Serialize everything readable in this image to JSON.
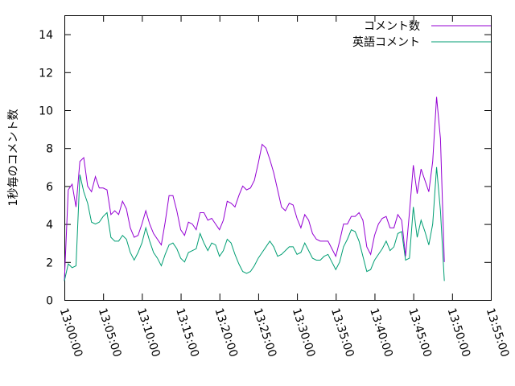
{
  "chart_data": {
    "type": "line",
    "ylabel": "1秒毎のコメント数",
    "xlabel": "",
    "ylim": [
      0,
      15
    ],
    "yticks": [
      0,
      2,
      4,
      6,
      8,
      10,
      12,
      14
    ],
    "xlim": [
      "13:00:00",
      "13:55:00"
    ],
    "xticks": [
      "13:00:00",
      "13:05:00",
      "13:10:00",
      "13:15:00",
      "13:20:00",
      "13:25:00",
      "13:30:00",
      "13:35:00",
      "13:40:00",
      "13:45:00",
      "13:50:00",
      "13:55:00"
    ],
    "grid": false,
    "legend_position": "top-right",
    "sample_interval": "30s",
    "series": [
      {
        "name": "コメント数",
        "color": "#9400d3",
        "values": [
          1.0,
          5.8,
          6.1,
          4.9,
          7.3,
          7.5,
          6.0,
          5.7,
          6.5,
          5.9,
          5.9,
          5.8,
          4.5,
          4.7,
          4.5,
          5.2,
          4.8,
          3.8,
          3.3,
          3.4,
          4.0,
          4.7,
          4.0,
          3.5,
          3.2,
          2.9,
          4.1,
          5.5,
          5.5,
          4.7,
          3.7,
          3.4,
          4.1,
          4.0,
          3.7,
          4.6,
          4.6,
          4.2,
          4.3,
          4.0,
          3.7,
          4.2,
          5.2,
          5.1,
          4.9,
          5.5,
          6.0,
          5.8,
          5.9,
          6.3,
          7.2,
          8.2,
          8.0,
          7.4,
          6.7,
          5.8,
          4.9,
          4.7,
          5.1,
          5.0,
          4.3,
          3.8,
          4.5,
          4.2,
          3.5,
          3.2,
          3.1,
          3.1,
          3.1,
          2.7,
          2.3,
          3.1,
          4.0,
          4.0,
          4.4,
          4.4,
          4.6,
          4.2,
          2.8,
          2.4,
          3.4,
          4.0,
          4.3,
          4.4,
          3.8,
          3.8,
          4.5,
          4.2,
          2.3,
          4.6,
          7.1,
          5.6,
          6.9,
          6.3,
          5.7,
          7.3,
          10.7,
          8.5,
          2.0
        ]
      },
      {
        "name": "英語コメント",
        "color": "#009e73",
        "values": [
          1.0,
          1.9,
          1.7,
          1.8,
          6.6,
          5.7,
          5.1,
          4.1,
          4.0,
          4.1,
          4.4,
          4.6,
          3.3,
          3.1,
          3.1,
          3.4,
          3.2,
          2.5,
          2.1,
          2.5,
          3.0,
          3.8,
          3.1,
          2.5,
          2.2,
          1.8,
          2.4,
          2.9,
          3.0,
          2.7,
          2.2,
          2.0,
          2.5,
          2.6,
          2.7,
          3.5,
          3.0,
          2.6,
          3.0,
          2.9,
          2.3,
          2.6,
          3.2,
          3.0,
          2.4,
          1.9,
          1.5,
          1.4,
          1.5,
          1.8,
          2.2,
          2.5,
          2.8,
          3.1,
          2.8,
          2.3,
          2.4,
          2.6,
          2.8,
          2.8,
          2.4,
          2.5,
          3.0,
          2.6,
          2.2,
          2.1,
          2.1,
          2.3,
          2.4,
          2.0,
          1.6,
          2.0,
          2.8,
          3.2,
          3.7,
          3.6,
          3.1,
          2.3,
          1.5,
          1.6,
          2.1,
          2.4,
          2.7,
          3.1,
          2.6,
          2.8,
          3.5,
          3.6,
          2.1,
          2.2,
          4.9,
          3.3,
          4.2,
          3.6,
          2.9,
          4.0,
          7.0,
          4.7,
          1.0
        ]
      }
    ]
  }
}
